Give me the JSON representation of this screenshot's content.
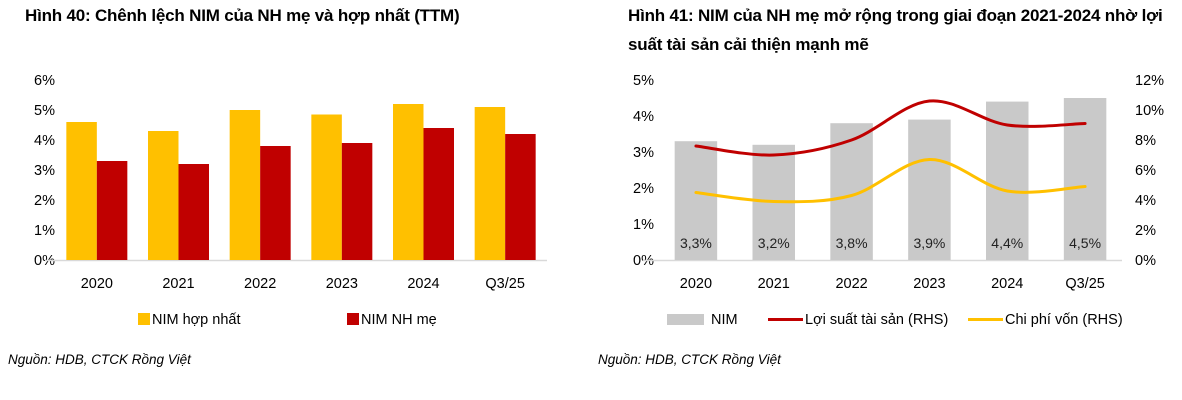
{
  "charts": {
    "left": {
      "title": "Hình 40: Chênh lệch NIM của NH mẹ và hợp nhất (TTM)",
      "source": "Nguồn: HDB, CTCK Rồng Việt"
    },
    "right": {
      "title": "Hình 41: NIM của NH mẹ mở rộng trong giai đoạn 2021-2024 nhờ lợi suất tài sản cải thiện mạnh mẽ",
      "source": "Nguồn: HDB, CTCK Rồng Việt"
    }
  },
  "chart_data": [
    {
      "type": "bar",
      "title": "Hình 40: Chênh lệch NIM của NH mẹ và hợp nhất (TTM)",
      "xlabel": "",
      "ylabel": "",
      "categories": [
        "2020",
        "2021",
        "2022",
        "2023",
        "2024",
        "Q3/25"
      ],
      "ylim": [
        0,
        6
      ],
      "yticks": [
        "0%",
        "1%",
        "2%",
        "3%",
        "4%",
        "5%",
        "6%"
      ],
      "grid": false,
      "legend": "bottom",
      "series": [
        {
          "name": "NIM hợp nhất",
          "color": "#FFC000",
          "values": [
            4.6,
            4.3,
            5.0,
            4.85,
            5.2,
            5.1
          ]
        },
        {
          "name": "NIM NH mẹ",
          "color": "#C00000",
          "values": [
            3.3,
            3.2,
            3.8,
            3.9,
            4.4,
            4.2
          ]
        }
      ]
    },
    {
      "type": "bar+line",
      "title": "Hình 41: NIM của NH mẹ mở rộng trong giai đoạn 2021-2024 nhờ lợi suất tài sản cải thiện mạnh mẽ",
      "xlabel": "",
      "ylabel": "",
      "categories": [
        "2020",
        "2021",
        "2022",
        "2023",
        "2024",
        "Q3/25"
      ],
      "ylim": [
        0,
        5
      ],
      "yticks": [
        "0%",
        "1%",
        "2%",
        "3%",
        "4%",
        "5%"
      ],
      "y2lim": [
        0,
        12
      ],
      "y2ticks": [
        "0%",
        "2%",
        "4%",
        "6%",
        "8%",
        "10%",
        "12%"
      ],
      "grid": false,
      "legend": "bottom",
      "series": [
        {
          "name": "NIM",
          "type": "bar",
          "axis": "left",
          "color": "#C9C9C9",
          "values": [
            3.3,
            3.2,
            3.8,
            3.9,
            4.4,
            4.5
          ],
          "labels": [
            "3,3%",
            "3,2%",
            "3,8%",
            "3,9%",
            "4,4%",
            "4,5%"
          ]
        },
        {
          "name": "Lợi suất tài sản (RHS)",
          "type": "line",
          "axis": "right",
          "color": "#C00000",
          "values": [
            7.6,
            7.0,
            8.0,
            10.6,
            9.0,
            9.1
          ]
        },
        {
          "name": "Chi phí vốn (RHS)",
          "type": "line",
          "axis": "right",
          "color": "#FFC000",
          "values": [
            4.5,
            3.9,
            4.3,
            6.7,
            4.6,
            4.9
          ]
        }
      ]
    }
  ]
}
